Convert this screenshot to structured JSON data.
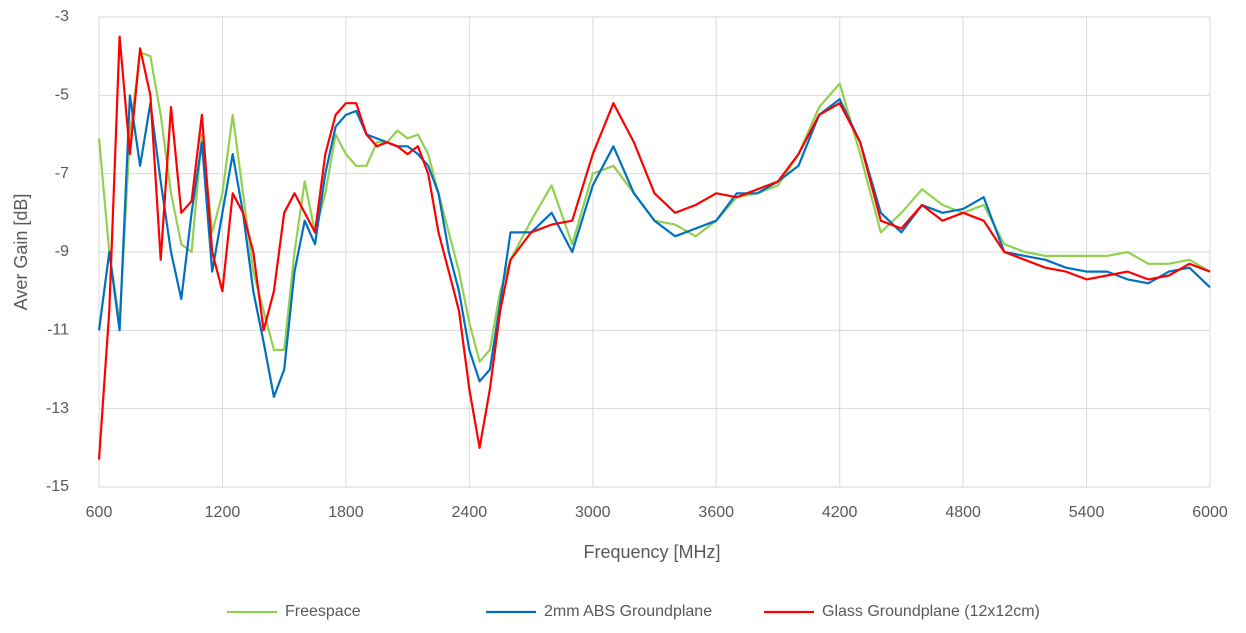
{
  "chart_data": {
    "type": "line",
    "x_label": "Frequency [MHz]",
    "y_label": "Aver Gain [dB]",
    "x": [
      600,
      650,
      700,
      750,
      800,
      850,
      900,
      950,
      1000,
      1050,
      1100,
      1150,
      1200,
      1250,
      1300,
      1350,
      1400,
      1450,
      1500,
      1550,
      1600,
      1650,
      1700,
      1750,
      1800,
      1850,
      1900,
      1950,
      2000,
      2050,
      2100,
      2150,
      2200,
      2250,
      2300,
      2350,
      2400,
      2450,
      2500,
      2550,
      2600,
      2700,
      2800,
      2900,
      3000,
      3100,
      3200,
      3300,
      3400,
      3500,
      3600,
      3700,
      3800,
      3900,
      4000,
      4100,
      4200,
      4300,
      4400,
      4500,
      4600,
      4700,
      4800,
      4900,
      5000,
      5100,
      5200,
      5300,
      5400,
      5500,
      5600,
      5700,
      5800,
      5900,
      6000
    ],
    "series": [
      {
        "name": "Freespace",
        "color": "#92d050",
        "values": [
          -6.1,
          -9,
          -10.8,
          -6,
          -3.9,
          -4,
          -5.5,
          -7.5,
          -8.8,
          -9,
          -6,
          -8.5,
          -7.5,
          -5.5,
          -7.5,
          -9.5,
          -10.5,
          -11.5,
          -11.5,
          -9,
          -7.2,
          -8.5,
          -7.5,
          -6,
          -6.5,
          -6.8,
          -6.8,
          -6.2,
          -6.2,
          -5.9,
          -6.1,
          -6,
          -6.5,
          -7.5,
          -8.5,
          -9.5,
          -10.8,
          -11.8,
          -11.5,
          -10,
          -9.2,
          -8.2,
          -7.3,
          -8.8,
          -7,
          -6.8,
          -7.5,
          -8.2,
          -8.3,
          -8.6,
          -8.2,
          -7.6,
          -7.5,
          -7.3,
          -6.5,
          -5.3,
          -4.7,
          -6.5,
          -8.5,
          -8,
          -7.4,
          -7.8,
          -8,
          -7.8,
          -8.8,
          -9,
          -9.1,
          -9.1,
          -9.1,
          -9.1,
          -9,
          -9.3,
          -9.3,
          -9.2,
          -9.5
        ]
      },
      {
        "name": "2mm ABS Groundplane",
        "color": "#0070c0",
        "values": [
          -11,
          -9,
          -11,
          -5,
          -6.8,
          -5.2,
          -7.2,
          -9,
          -10.2,
          -8,
          -6.2,
          -9.5,
          -8,
          -6.5,
          -8,
          -10,
          -11.3,
          -12.7,
          -12,
          -9.5,
          -8.2,
          -8.8,
          -7,
          -5.8,
          -5.5,
          -5.4,
          -6,
          -6.1,
          -6.2,
          -6.3,
          -6.3,
          -6.5,
          -6.8,
          -7.5,
          -9,
          -10,
          -11.5,
          -12.3,
          -12,
          -10.3,
          -8.5,
          -8.5,
          -8,
          -9,
          -7.3,
          -6.3,
          -7.5,
          -8.2,
          -8.6,
          -8.4,
          -8.2,
          -7.5,
          -7.5,
          -7.2,
          -6.8,
          -5.5,
          -5.1,
          -6.2,
          -8,
          -8.5,
          -7.8,
          -8,
          -7.9,
          -7.6,
          -9,
          -9.1,
          -9.2,
          -9.4,
          -9.5,
          -9.5,
          -9.7,
          -9.8,
          -9.5,
          -9.4,
          -9.9
        ]
      },
      {
        "name": "Glass Groundplane (12x12cm)",
        "color": "#ff0000",
        "values": [
          -14.3,
          -10.5,
          -3.5,
          -6.5,
          -3.8,
          -5,
          -9.2,
          -5.3,
          -8,
          -7.7,
          -5.5,
          -9,
          -10,
          -7.5,
          -8,
          -9,
          -11,
          -10,
          -8,
          -7.5,
          -8,
          -8.5,
          -6.5,
          -5.5,
          -5.2,
          -5.2,
          -6,
          -6.3,
          -6.2,
          -6.3,
          -6.5,
          -6.3,
          -7,
          -8.5,
          -9.5,
          -10.5,
          -12.5,
          -14,
          -12.5,
          -10.5,
          -9.2,
          -8.5,
          -8.3,
          -8.2,
          -6.5,
          -5.2,
          -6.2,
          -7.5,
          -8,
          -7.8,
          -7.5,
          -7.6,
          -7.4,
          -7.2,
          -6.5,
          -5.5,
          -5.2,
          -6.2,
          -8.2,
          -8.4,
          -7.8,
          -8.2,
          -8,
          -8.2,
          -9,
          -9.2,
          -9.4,
          -9.5,
          -9.7,
          -9.6,
          -9.5,
          -9.7,
          -9.6,
          -9.3,
          -9.5
        ]
      }
    ],
    "xlim": [
      600,
      6000
    ],
    "xticks": [
      600,
      1200,
      1800,
      2400,
      3000,
      3600,
      4200,
      4800,
      5400,
      6000
    ],
    "ylim": [
      -15,
      -3
    ],
    "yticks": [
      -15,
      -13,
      -11,
      -9,
      -7,
      -5,
      -3
    ],
    "grid": true,
    "legend": "bottom"
  }
}
